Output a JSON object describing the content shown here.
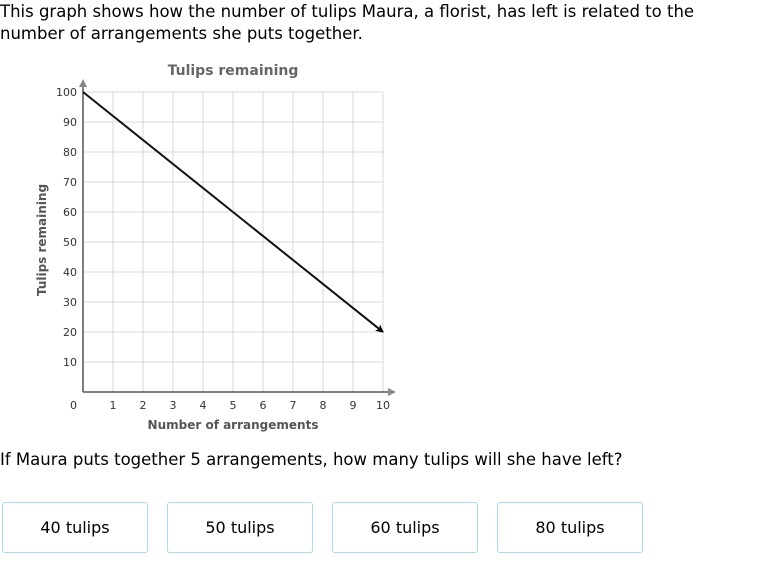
{
  "problem": {
    "intro": "This graph shows how the number of tulips Maura, a florist, has left is related to the number of arrangements she puts together.",
    "question": "If Maura puts together 5 arrangements, how many tulips will she have left?"
  },
  "chart_data": {
    "type": "line",
    "title": "Tulips remaining",
    "xlabel": "Number of arrangements",
    "ylabel": "Tulips remaining",
    "xlim": [
      0,
      10
    ],
    "ylim": [
      0,
      100
    ],
    "x_ticks": [
      1,
      2,
      3,
      4,
      5,
      6,
      7,
      8,
      9,
      10
    ],
    "y_ticks": [
      10,
      20,
      30,
      40,
      50,
      60,
      70,
      80,
      90,
      100
    ],
    "origin_label": "0",
    "grid": true,
    "series": [
      {
        "x": [
          0,
          10
        ],
        "y": [
          100,
          20
        ],
        "arrow_end": true
      }
    ]
  },
  "answers": [
    {
      "label": "40 tulips"
    },
    {
      "label": "50 tulips"
    },
    {
      "label": "60 tulips"
    },
    {
      "label": "80 tulips"
    }
  ]
}
